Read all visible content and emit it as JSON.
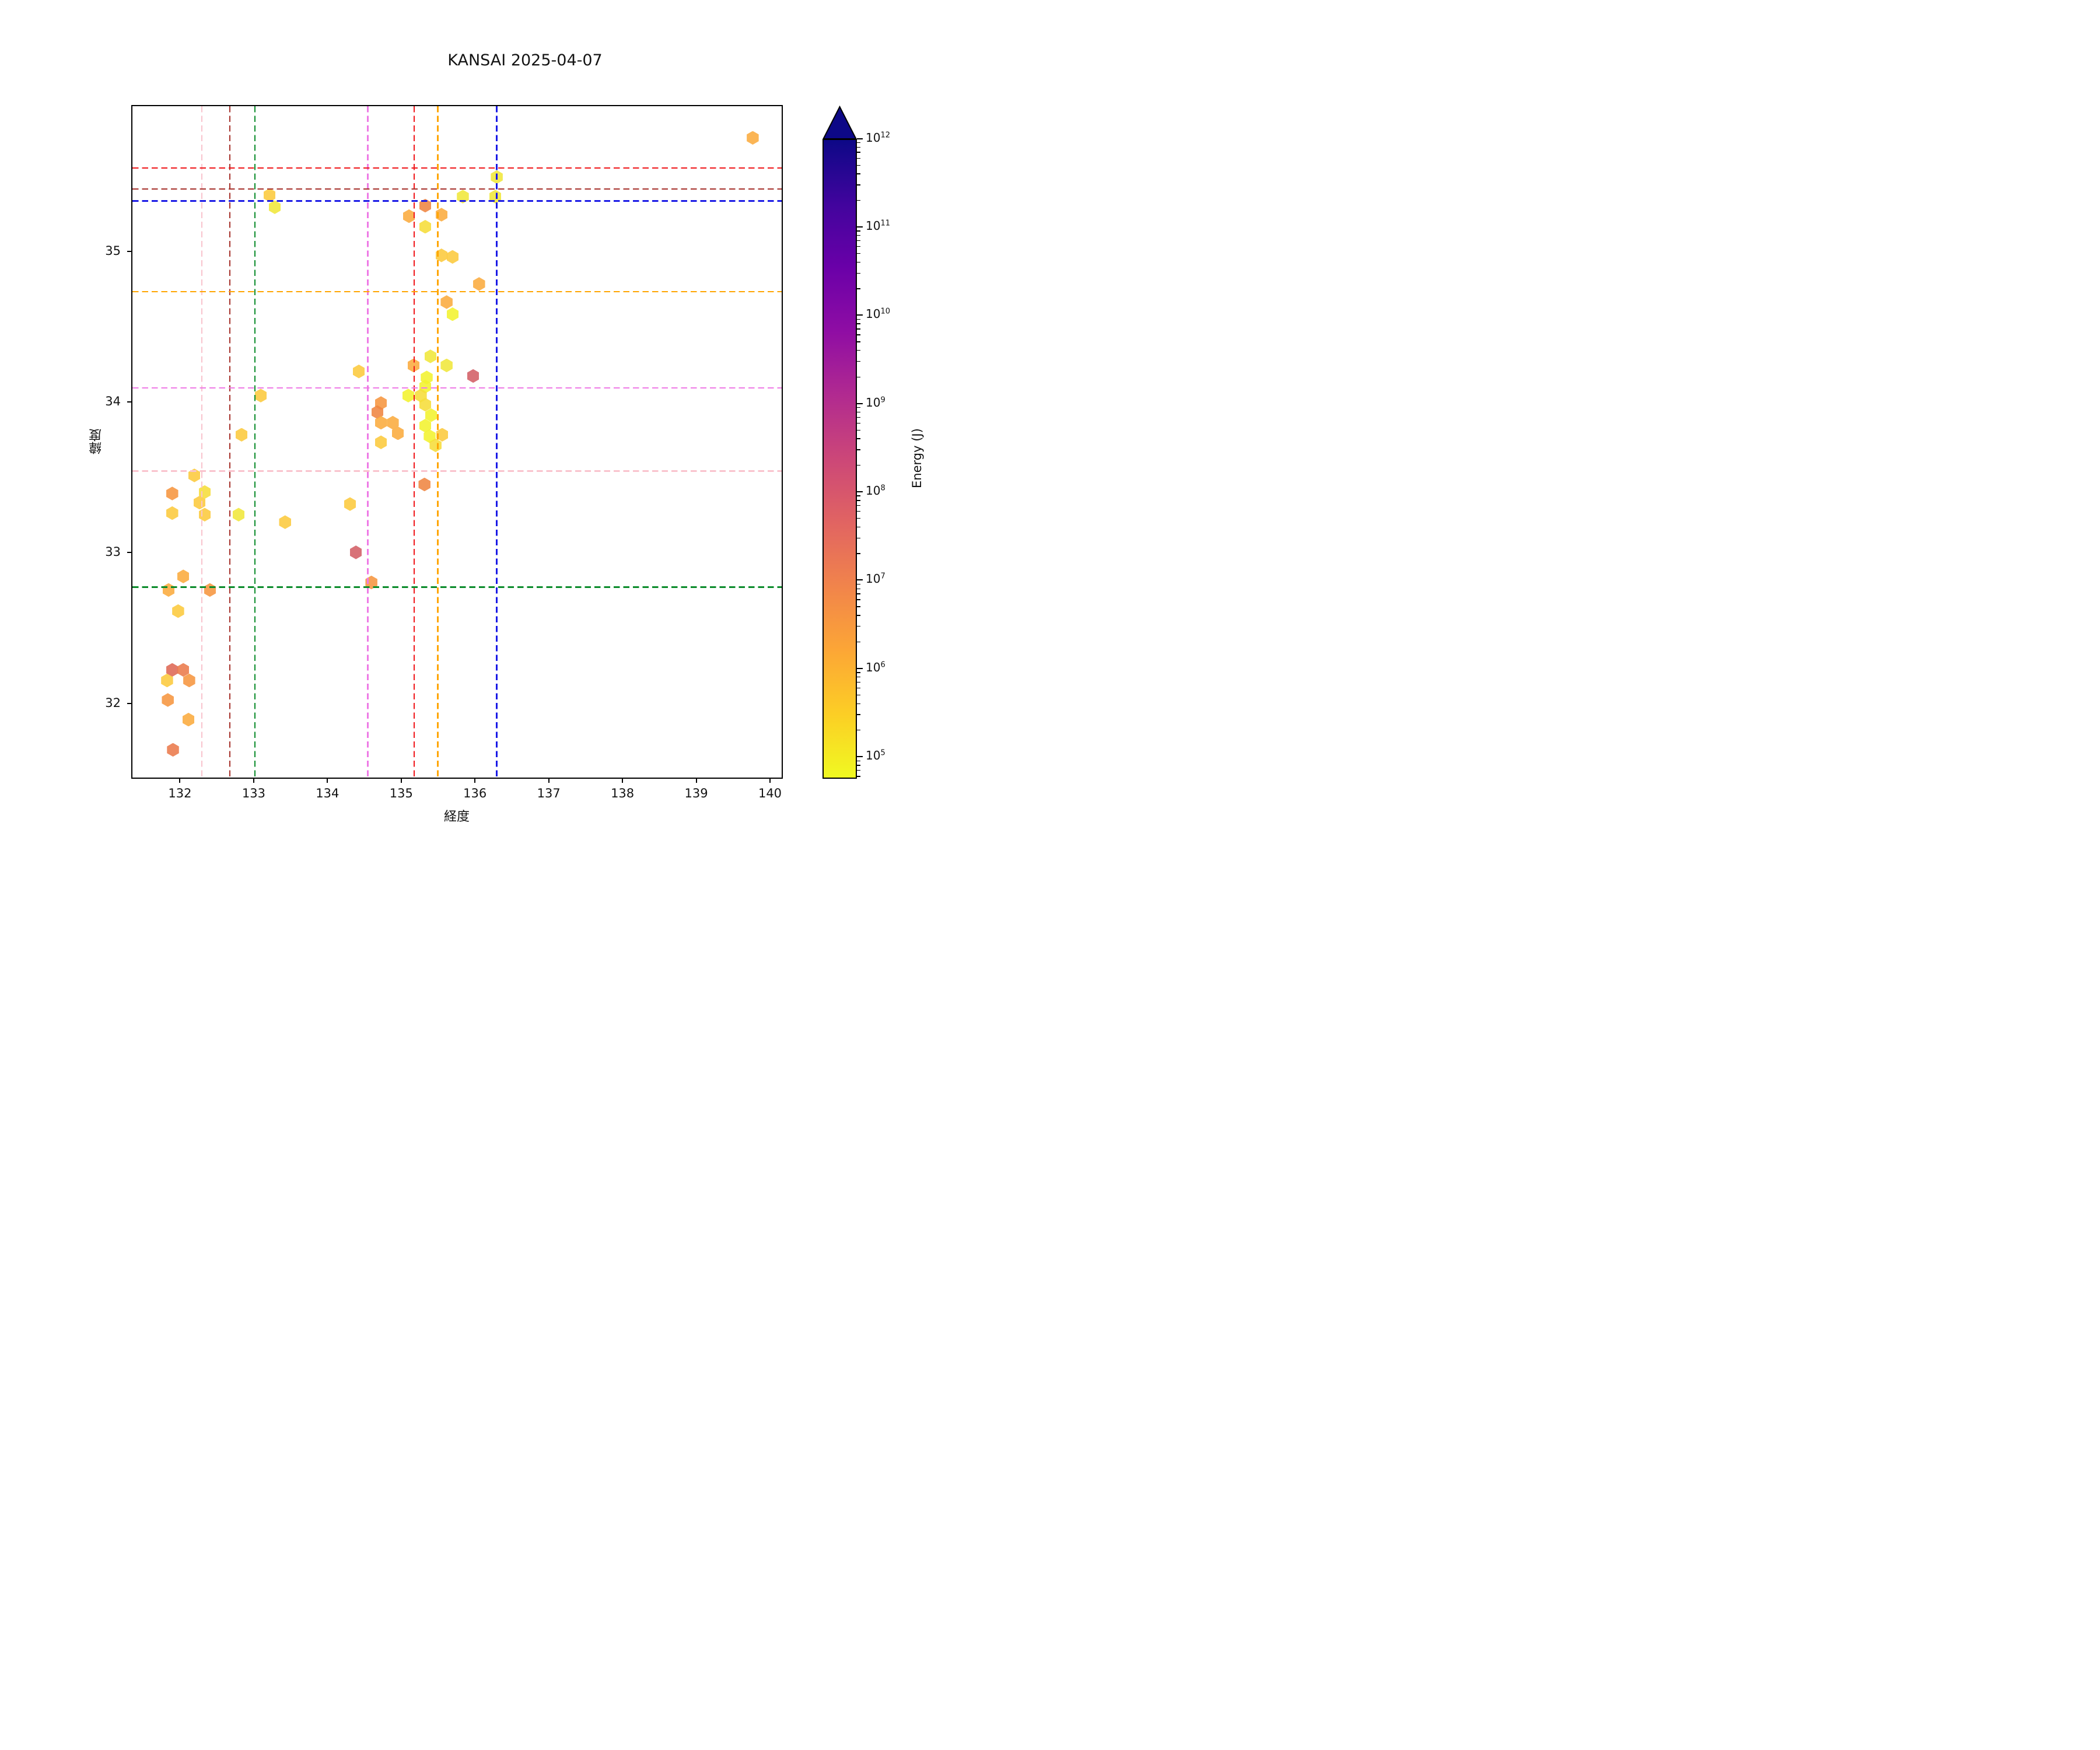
{
  "title": "KANSAI 2025-04-07",
  "chart_data": {
    "type": "scatter",
    "marker": "hexagon",
    "title": "KANSAI 2025-04-07",
    "xlabel": "経度",
    "ylabel": "緯度",
    "xlim": [
      131.34,
      140.17
    ],
    "ylim": [
      31.5,
      35.97
    ],
    "xticks": [
      132,
      133,
      134,
      135,
      136,
      137,
      138,
      139,
      140
    ],
    "yticks": [
      32,
      33,
      34,
      35
    ],
    "grid": false,
    "colorbar": {
      "label": "Energy (J)",
      "scale": "log",
      "cmap": "plasma_r",
      "extend": "max",
      "tick_exponents": [
        12,
        11,
        10,
        9,
        8,
        7,
        6,
        5
      ],
      "range_exponents": [
        4.75,
        12
      ],
      "top_color": "#0d0887",
      "bottom_color": "#f0f921"
    },
    "reference_lines": {
      "vertical": [
        {
          "name": "pink-vline",
          "lon": 132.28,
          "color": "#f9c3cd"
        },
        {
          "name": "darkred-vline",
          "lon": 132.66,
          "color": "#a5302a"
        },
        {
          "name": "green-vline",
          "lon": 133.0,
          "color": "#0a8b2a"
        },
        {
          "name": "violet-vline",
          "lon": 134.53,
          "color": "#ee7ae6"
        },
        {
          "name": "red-vline",
          "lon": 135.16,
          "color": "#f01418"
        },
        {
          "name": "orange-vline",
          "lon": 135.48,
          "color": "#ffa500"
        },
        {
          "name": "blue-vline",
          "lon": 136.28,
          "color": "#1a1ae6"
        }
      ],
      "horizontal": [
        {
          "name": "red-hline",
          "lat": 35.56,
          "color": "#f01418"
        },
        {
          "name": "darkred-hline",
          "lat": 35.42,
          "color": "#a5302a"
        },
        {
          "name": "blue-hline",
          "lat": 35.34,
          "color": "#1a1ae6"
        },
        {
          "name": "orange-hline",
          "lat": 34.74,
          "color": "#ffa500"
        },
        {
          "name": "violet-hline",
          "lat": 34.1,
          "color": "#ee7ae6"
        },
        {
          "name": "pink-hline",
          "lat": 33.55,
          "color": "#f9c3cd"
        },
        {
          "name": "green-hline",
          "lat": 32.78,
          "color": "#0a8b2a"
        }
      ]
    },
    "points": [
      {
        "lon": 133.2,
        "lat": 35.38,
        "energy": 1000000,
        "color": "#fcc93c"
      },
      {
        "lon": 133.27,
        "lat": 35.3,
        "energy": 200000,
        "color": "#f0e73a"
      },
      {
        "lon": 136.28,
        "lat": 35.5,
        "energy": 200000,
        "color": "#f0e73a"
      },
      {
        "lon": 135.82,
        "lat": 35.37,
        "energy": 200000,
        "color": "#f0e73a"
      },
      {
        "lon": 136.26,
        "lat": 35.37,
        "energy": 200000,
        "color": "#f0e73a"
      },
      {
        "lon": 135.31,
        "lat": 35.31,
        "energy": 30000000,
        "color": "#ef8541"
      },
      {
        "lon": 135.09,
        "lat": 35.24,
        "energy": 4000000,
        "color": "#fbab3d"
      },
      {
        "lon": 135.53,
        "lat": 35.25,
        "energy": 4000000,
        "color": "#fbab3d"
      },
      {
        "lon": 135.31,
        "lat": 35.17,
        "energy": 500000,
        "color": "#f6dd39"
      },
      {
        "lon": 135.53,
        "lat": 34.98,
        "energy": 1000000,
        "color": "#fcc93c"
      },
      {
        "lon": 135.68,
        "lat": 34.97,
        "energy": 1000000,
        "color": "#fcc93c"
      },
      {
        "lon": 136.04,
        "lat": 34.79,
        "energy": 4000000,
        "color": "#fbab3d"
      },
      {
        "lon": 135.6,
        "lat": 34.67,
        "energy": 4000000,
        "color": "#fbab3d"
      },
      {
        "lon": 135.68,
        "lat": 34.59,
        "energy": 100000,
        "color": "#f2f22e"
      },
      {
        "lon": 139.75,
        "lat": 35.76,
        "energy": 4000000,
        "color": "#fbab3d"
      },
      {
        "lon": 135.38,
        "lat": 34.31,
        "energy": 200000,
        "color": "#f0e73a"
      },
      {
        "lon": 135.15,
        "lat": 34.25,
        "energy": 4000000,
        "color": "#fbab3d"
      },
      {
        "lon": 135.6,
        "lat": 34.25,
        "energy": 200000,
        "color": "#f0e73a"
      },
      {
        "lon": 135.96,
        "lat": 34.18,
        "energy": 300000000,
        "color": "#d35f65"
      },
      {
        "lon": 135.33,
        "lat": 34.17,
        "energy": 100000,
        "color": "#f2f22e"
      },
      {
        "lon": 135.31,
        "lat": 34.11,
        "energy": 100000,
        "color": "#f2f22e"
      },
      {
        "lon": 135.08,
        "lat": 34.05,
        "energy": 100000,
        "color": "#f2f22e"
      },
      {
        "lon": 135.25,
        "lat": 34.05,
        "energy": 500000,
        "color": "#f6dd39"
      },
      {
        "lon": 135.31,
        "lat": 33.99,
        "energy": 500000,
        "color": "#f6dd39"
      },
      {
        "lon": 135.39,
        "lat": 33.92,
        "energy": 100000,
        "color": "#f2f22e"
      },
      {
        "lon": 135.31,
        "lat": 33.85,
        "energy": 100000,
        "color": "#f2f22e"
      },
      {
        "lon": 135.37,
        "lat": 33.78,
        "energy": 100000,
        "color": "#f2f22e"
      },
      {
        "lon": 135.54,
        "lat": 33.79,
        "energy": 1000000,
        "color": "#fcc93c"
      },
      {
        "lon": 135.45,
        "lat": 33.72,
        "energy": 500000,
        "color": "#f6dd39"
      },
      {
        "lon": 135.3,
        "lat": 33.46,
        "energy": 30000000,
        "color": "#ef8541"
      },
      {
        "lon": 134.71,
        "lat": 34.0,
        "energy": 15000000,
        "color": "#f6953f"
      },
      {
        "lon": 134.66,
        "lat": 33.94,
        "energy": 30000000,
        "color": "#ef8541"
      },
      {
        "lon": 134.71,
        "lat": 33.87,
        "energy": 4000000,
        "color": "#fbab3d"
      },
      {
        "lon": 134.87,
        "lat": 33.87,
        "energy": 4000000,
        "color": "#fbab3d"
      },
      {
        "lon": 134.94,
        "lat": 33.8,
        "energy": 4000000,
        "color": "#fbab3d"
      },
      {
        "lon": 134.71,
        "lat": 33.74,
        "energy": 1000000,
        "color": "#fcc93c"
      },
      {
        "lon": 134.41,
        "lat": 34.21,
        "energy": 1000000,
        "color": "#fcc93c"
      },
      {
        "lon": 133.08,
        "lat": 34.05,
        "energy": 1000000,
        "color": "#fcc93c"
      },
      {
        "lon": 132.82,
        "lat": 33.79,
        "energy": 1000000,
        "color": "#fcc93c"
      },
      {
        "lon": 134.29,
        "lat": 33.33,
        "energy": 1000000,
        "color": "#fcc93c"
      },
      {
        "lon": 133.41,
        "lat": 33.21,
        "energy": 1000000,
        "color": "#fcc93c"
      },
      {
        "lon": 134.37,
        "lat": 33.01,
        "energy": 300000000,
        "color": "#d35f65"
      },
      {
        "lon": 134.58,
        "lat": 32.81,
        "energy": 15000000,
        "color": "#f6953f"
      },
      {
        "lon": 132.18,
        "lat": 33.52,
        "energy": 1000000,
        "color": "#fcc93c"
      },
      {
        "lon": 131.88,
        "lat": 33.4,
        "energy": 15000000,
        "color": "#f6953f"
      },
      {
        "lon": 132.32,
        "lat": 33.41,
        "energy": 500000,
        "color": "#f6dd39"
      },
      {
        "lon": 132.25,
        "lat": 33.34,
        "energy": 1000000,
        "color": "#fcc93c"
      },
      {
        "lon": 132.32,
        "lat": 33.26,
        "energy": 1000000,
        "color": "#fcc93c"
      },
      {
        "lon": 131.88,
        "lat": 33.27,
        "energy": 1000000,
        "color": "#fcc93c"
      },
      {
        "lon": 132.78,
        "lat": 33.26,
        "energy": 200000,
        "color": "#f0e73a"
      },
      {
        "lon": 132.03,
        "lat": 32.85,
        "energy": 4000000,
        "color": "#fbab3d"
      },
      {
        "lon": 131.83,
        "lat": 32.76,
        "energy": 4000000,
        "color": "#fbab3d"
      },
      {
        "lon": 132.39,
        "lat": 32.76,
        "energy": 15000000,
        "color": "#f6953f"
      },
      {
        "lon": 131.96,
        "lat": 32.62,
        "energy": 1000000,
        "color": "#fcc93c"
      },
      {
        "lon": 131.88,
        "lat": 32.23,
        "energy": 150000000,
        "color": "#de6854"
      },
      {
        "lon": 132.03,
        "lat": 32.23,
        "energy": 80000000,
        "color": "#ea7a4b"
      },
      {
        "lon": 131.81,
        "lat": 32.16,
        "energy": 1000000,
        "color": "#fcc93c"
      },
      {
        "lon": 132.11,
        "lat": 32.16,
        "energy": 15000000,
        "color": "#f6953f"
      },
      {
        "lon": 131.82,
        "lat": 32.03,
        "energy": 15000000,
        "color": "#f6953f"
      },
      {
        "lon": 132.1,
        "lat": 31.9,
        "energy": 4000000,
        "color": "#fbab3d"
      },
      {
        "lon": 131.89,
        "lat": 31.7,
        "energy": 80000000,
        "color": "#ea7a4b"
      }
    ]
  }
}
